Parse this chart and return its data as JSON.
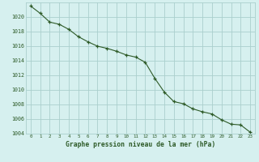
{
  "x": [
    0,
    1,
    2,
    3,
    4,
    5,
    6,
    7,
    8,
    9,
    10,
    11,
    12,
    13,
    14,
    15,
    16,
    17,
    18,
    19,
    20,
    21,
    22,
    23
  ],
  "y": [
    1021.5,
    1020.5,
    1019.3,
    1019.0,
    1018.3,
    1017.3,
    1016.6,
    1016.0,
    1015.7,
    1015.3,
    1014.8,
    1014.5,
    1013.8,
    1011.6,
    1009.7,
    1008.4,
    1008.1,
    1007.4,
    1007.0,
    1006.7,
    1005.9,
    1005.3,
    1005.2,
    1004.2
  ],
  "ylim": [
    1004,
    1022
  ],
  "xlim": [
    -0.5,
    23.5
  ],
  "yticks": [
    1004,
    1006,
    1008,
    1010,
    1012,
    1014,
    1016,
    1018,
    1020
  ],
  "xticks": [
    0,
    1,
    2,
    3,
    4,
    5,
    6,
    7,
    8,
    9,
    10,
    11,
    12,
    13,
    14,
    15,
    16,
    17,
    18,
    19,
    20,
    21,
    22,
    23
  ],
  "xlabel": "Graphe pression niveau de la mer (hPa)",
  "line_color": "#2d5a27",
  "marker": "+",
  "bg_color": "#d6f0ef",
  "grid_color": "#aacfcd",
  "tick_color": "#2d5a27",
  "label_color": "#2d5a27"
}
